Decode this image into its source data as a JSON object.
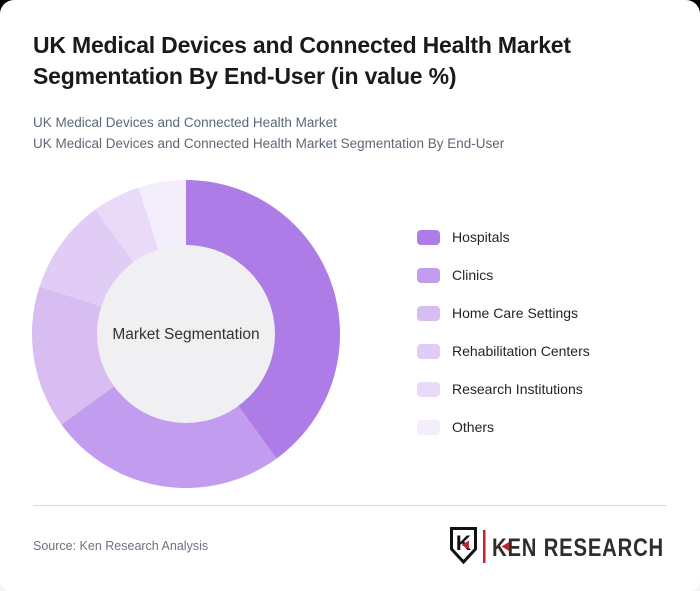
{
  "header": {
    "title": "UK Medical Devices and Connected Health Market Segmentation By End-User (in value %)",
    "subtitle1": "UK Medical Devices and Connected Health Market",
    "subtitle2": "UK Medical Devices and Connected Health Market Segmentation By End-User"
  },
  "chart_data": {
    "type": "pie",
    "subtype": "donut",
    "title": "UK Medical Devices and Connected Health Market Segmentation By End-User (in value %)",
    "center_label": "Market Segmentation",
    "unit": "% of value",
    "categories": [
      "Hospitals",
      "Clinics",
      "Home Care Settings",
      "Rehabilitation Centers",
      "Research Institutions",
      "Others"
    ],
    "values": [
      40,
      25,
      15,
      10,
      5,
      5
    ],
    "colors": [
      "#ad7ce7",
      "#c29cef",
      "#d8bdf2",
      "#e1ccf6",
      "#e9dbf8",
      "#f4edfb"
    ],
    "start_angle_deg": 0,
    "clockwise": true,
    "legend_position": "right",
    "data_labels_shown": false,
    "inner_circle_color": "#f0eff1",
    "center_text_color": "#333333"
  },
  "footer": {
    "source": "Source: Ken Research Analysis"
  },
  "logo": {
    "brand": "KEN RESEARCH",
    "shield_letter": "K",
    "accent_color": "#c4242b",
    "text_color": "#2e2e2e"
  }
}
